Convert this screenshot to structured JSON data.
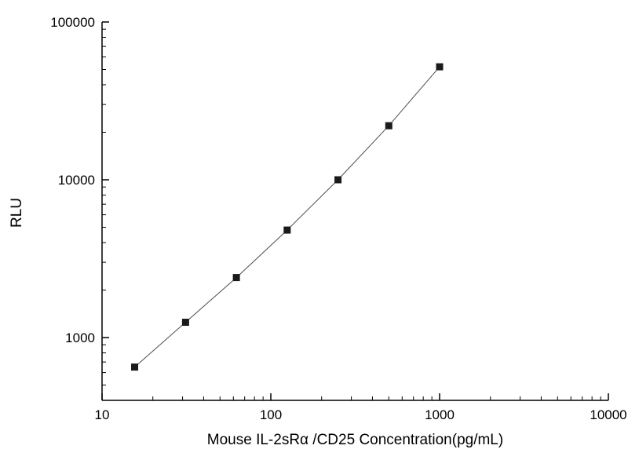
{
  "chart_data": {
    "type": "scatter",
    "title": "",
    "xlabel": "Mouse IL-2sRα /CD25 Concentration(pg/mL)",
    "ylabel": "RLU",
    "xscale": "log",
    "yscale": "log",
    "xlim": [
      10,
      10000
    ],
    "ylim": [
      400,
      100000
    ],
    "x_ticks": [
      10,
      100,
      1000,
      10000
    ],
    "y_ticks": [
      1000,
      10000,
      100000
    ],
    "x": [
      15.6,
      31.25,
      62.5,
      125,
      250,
      500,
      1000
    ],
    "y": [
      650,
      1250,
      2400,
      4800,
      10000,
      22000,
      52000
    ],
    "marker": "square",
    "marker_color": "#1a1a1a",
    "line_color": "#4d4d4d",
    "axis_color": "#000000",
    "background_color": "#ffffff",
    "grid": false,
    "legend": false
  }
}
